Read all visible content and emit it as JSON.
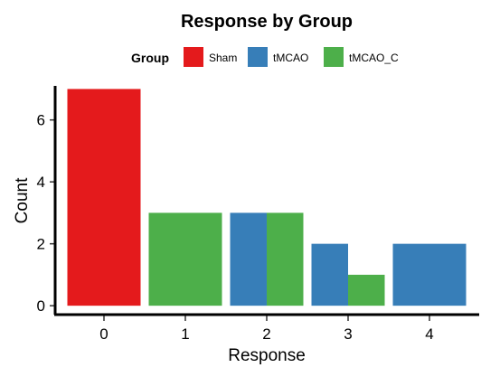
{
  "chart_data": {
    "type": "bar",
    "title": "Response by Group",
    "xlabel": "Response",
    "ylabel": "Count",
    "categories": [
      "0",
      "1",
      "2",
      "3",
      "4"
    ],
    "y_ticks": [
      "0",
      "2",
      "4",
      "6"
    ],
    "ylim": [
      -0.2,
      7.1
    ],
    "grid": false,
    "legend": {
      "title": "Group",
      "position": "top"
    },
    "series": [
      {
        "name": "Sham",
        "color": "#E41A1C",
        "values": [
          7,
          0,
          0,
          0,
          0
        ]
      },
      {
        "name": "tMCAO",
        "color": "#377EB8",
        "values": [
          0,
          0,
          3,
          2,
          2
        ]
      },
      {
        "name": "tMCAO_C",
        "color": "#4DAF4A",
        "values": [
          0,
          3,
          3,
          1,
          0
        ]
      }
    ]
  }
}
